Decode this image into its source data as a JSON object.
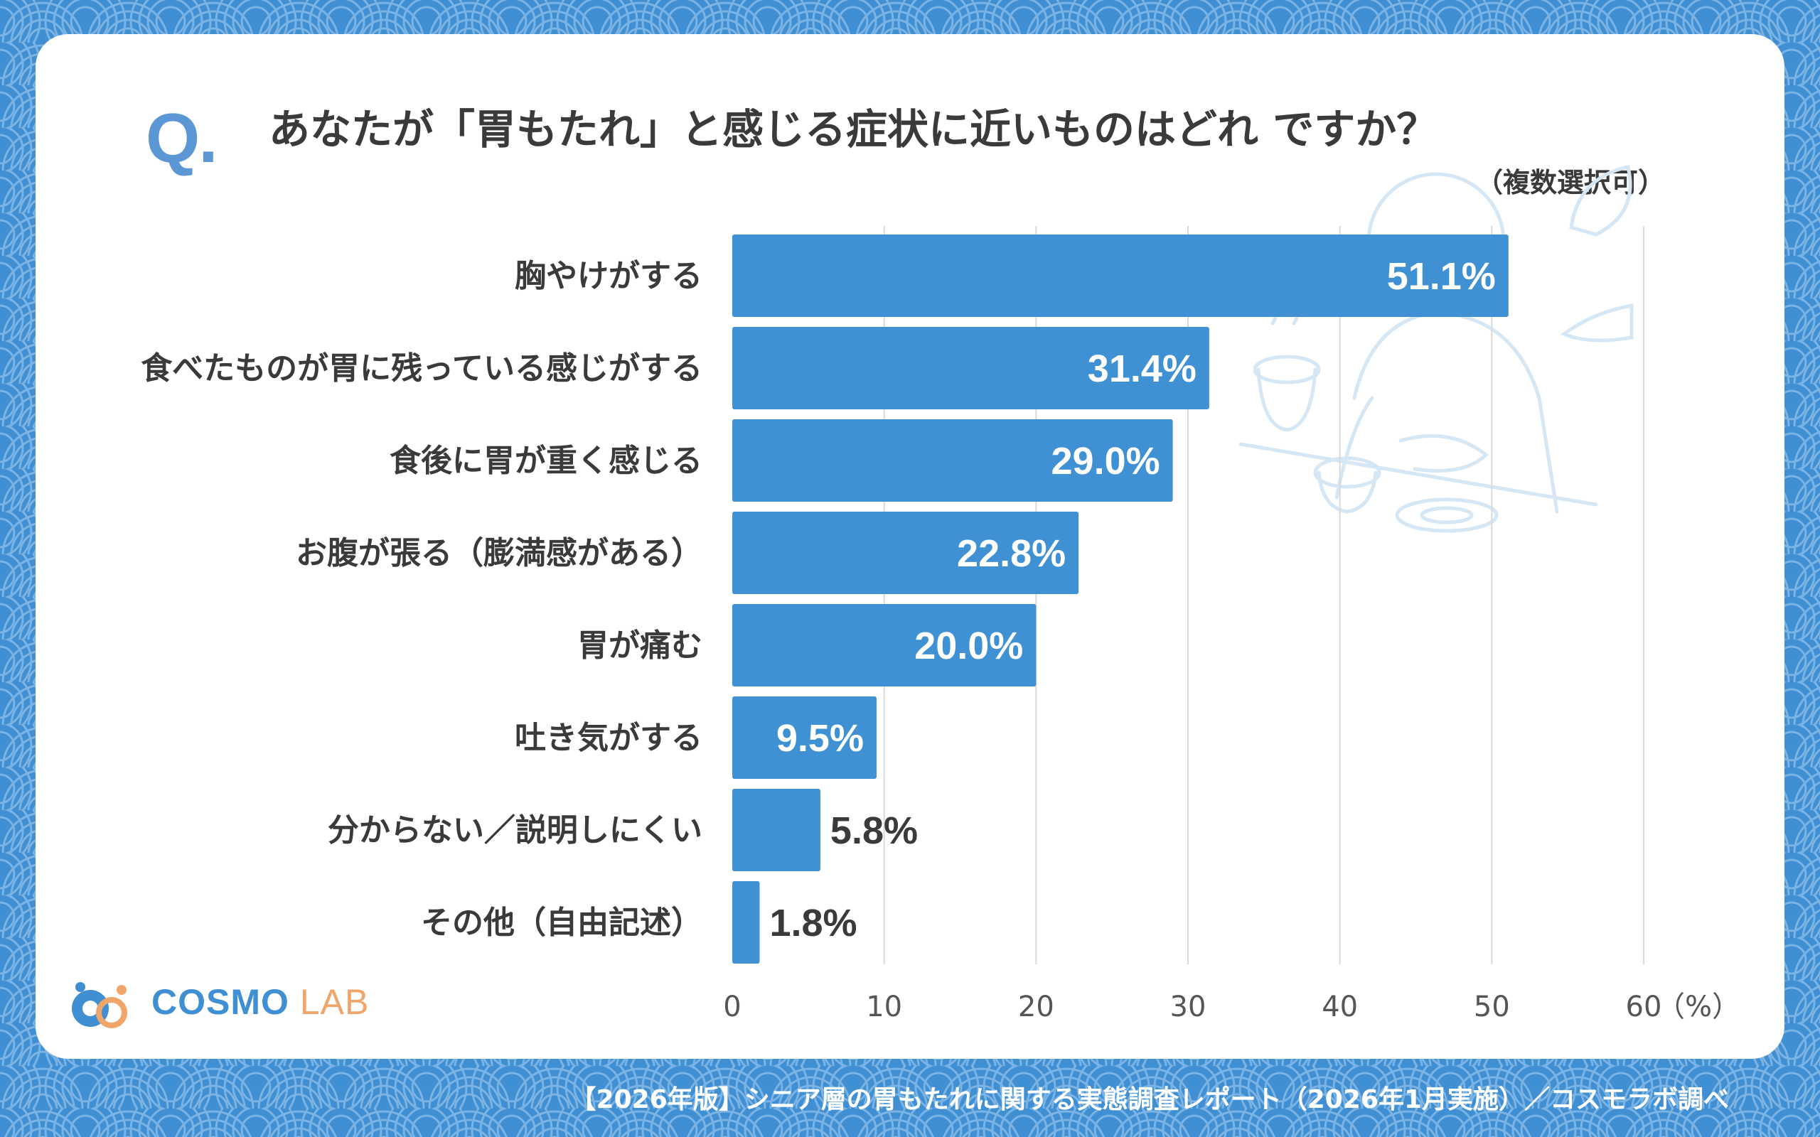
{
  "question_mark": "Q.",
  "title": "あなたが「胃もたれ」と感じる症状に近いものはどれ ですか？",
  "subtitle": "（複数選択可）",
  "colors": {
    "bar": "#3f91d4",
    "background": "#3f8fd2",
    "text": "#3a3a3a"
  },
  "chart_data": {
    "type": "bar",
    "orientation": "horizontal",
    "categories": [
      "胸やけがする",
      "食べたものが胃に残っている感じがする",
      "食後に胃が重く感じる",
      "お腹が張る（膨満感がある）",
      "胃が痛む",
      "吐き気がする",
      "分からない／説明しにくい",
      "その他（自由記述）"
    ],
    "values": [
      51.1,
      31.4,
      29.0,
      22.8,
      20.0,
      9.5,
      5.8,
      1.8
    ],
    "value_labels": [
      "51.1%",
      "31.4%",
      "29.0%",
      "22.8%",
      "20.0%",
      "9.5%",
      "5.8%",
      "1.8%"
    ],
    "x_ticks": [
      "0",
      "10",
      "20",
      "30",
      "40",
      "50",
      "60"
    ],
    "xlim": [
      0,
      60
    ],
    "unit_label": "（%）",
    "grid": true
  },
  "logo": {
    "name_main": "COSMO",
    "name_sub": "LAB"
  },
  "footer": "【2026年版】シニア層の胃もたれに関する実態調査レポート（2026年1月実施）／コスモラボ調べ"
}
